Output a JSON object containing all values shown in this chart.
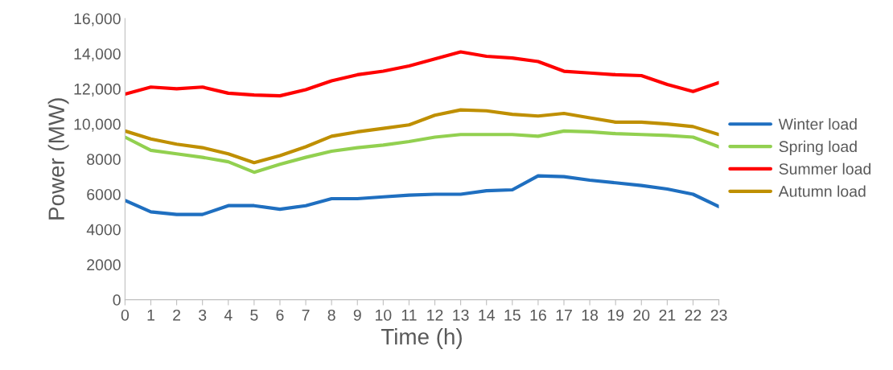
{
  "chart_data": {
    "type": "line",
    "xlabel": "Time (h)",
    "ylabel": "Power (MW)",
    "x": [
      0,
      1,
      2,
      3,
      4,
      5,
      6,
      7,
      8,
      9,
      10,
      11,
      12,
      13,
      14,
      15,
      16,
      17,
      18,
      19,
      20,
      21,
      22,
      23
    ],
    "xlim": [
      0,
      23
    ],
    "xticks": [
      0,
      1,
      2,
      3,
      4,
      5,
      6,
      7,
      8,
      9,
      10,
      11,
      12,
      13,
      14,
      15,
      16,
      17,
      18,
      19,
      20,
      21,
      22,
      23
    ],
    "ylim": [
      0,
      16000
    ],
    "yticks": [
      0,
      2000,
      4000,
      6000,
      8000,
      {
        "value": 10000,
        "label": "10,000"
      },
      {
        "value": 12000,
        "label": "12,000"
      },
      {
        "value": 14000,
        "label": "14,000"
      },
      {
        "value": 16000,
        "label": "16,000"
      }
    ],
    "grid": false,
    "legend": "right",
    "marker": "none",
    "line_style": "solid",
    "series": [
      {
        "name": "Winter load",
        "color": "#1f6fc0",
        "values": [
          5650,
          5000,
          4850,
          4850,
          5350,
          5350,
          5150,
          5350,
          5750,
          5750,
          5850,
          5950,
          6000,
          6000,
          6200,
          6250,
          7050,
          7000,
          6800,
          6650,
          6500,
          6300,
          6000,
          5300
        ]
      },
      {
        "name": "Spring load",
        "color": "#92d050",
        "values": [
          9250,
          8500,
          8300,
          8100,
          7850,
          7250,
          7700,
          8100,
          8450,
          8650,
          8800,
          9000,
          9250,
          9400,
          9400,
          9400,
          9300,
          9600,
          9550,
          9450,
          9400,
          9350,
          9250,
          8700
        ]
      },
      {
        "name": "Summer load",
        "color": "#ff0000",
        "values": [
          11700,
          12100,
          12000,
          12100,
          11750,
          11650,
          11600,
          11950,
          12450,
          12800,
          13000,
          13300,
          13700,
          14100,
          13850,
          13750,
          13550,
          13000,
          12900,
          12800,
          12750,
          12250,
          11850,
          12350
        ]
      },
      {
        "name": "Autumn load",
        "color": "#bf8f00",
        "values": [
          9600,
          9150,
          8850,
          8650,
          8300,
          7800,
          8200,
          8700,
          9300,
          9550,
          9750,
          9950,
          10500,
          10800,
          10750,
          10550,
          10450,
          10600,
          10350,
          10100,
          10100,
          10000,
          9850,
          9400
        ]
      }
    ]
  }
}
